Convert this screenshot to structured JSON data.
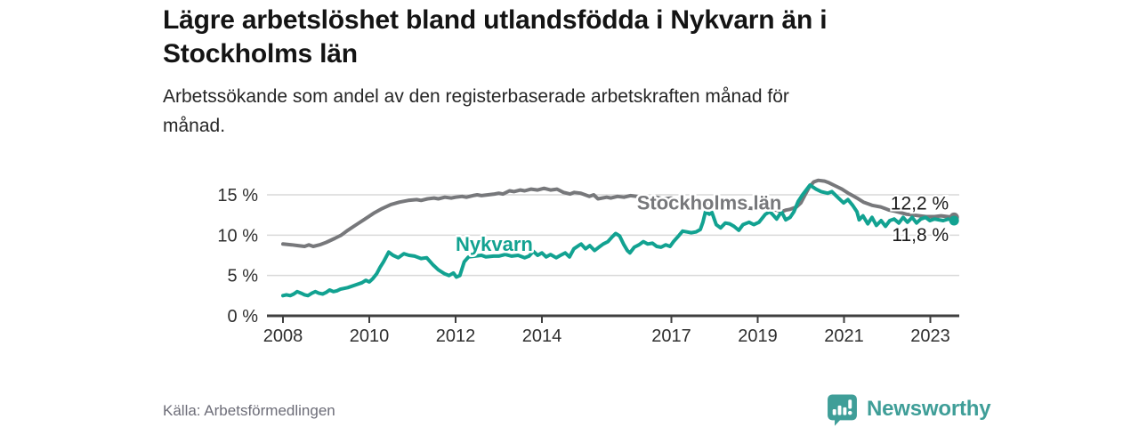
{
  "header": {
    "title": "Lägre arbetslöshet bland utlandsfödda i Nykvarn än i Stockholms län",
    "title_lines": [
      "Lägre arbetslöshet bland utlandsfödda i Nykvarn än i",
      "Stockholms län"
    ],
    "subtitle": "Arbetssökande som andel av den registerbaserade arbetskraften månad för månad.",
    "subtitle_lines": [
      "Arbetssökande som andel av den registerbaserade arbetskraften månad för",
      "månad."
    ]
  },
  "footer": {
    "source": "Källa: Arbetsförmedlingen",
    "brand": "Newsworthy"
  },
  "colors": {
    "stockholm_line": "#77787b",
    "nykvarn_line": "#12a291",
    "axis": "#3f3f3f",
    "grid": "#d9d9d9",
    "tick_text": "#2f2f2f",
    "end_label_text": "#1a1a1a",
    "logo_teal": "#3f9e98",
    "source_text": "#6d6d78"
  },
  "chart_data": {
    "type": "line",
    "title": "Lägre arbetslöshet bland utlandsfödda i Nykvarn än i Stockholms län",
    "subtitle": "Arbetssökande som andel av den registerbaserade arbetskraften månad för månad.",
    "xlabel": "",
    "ylabel": "",
    "xlim": [
      2008,
      2023.8
    ],
    "ylim": [
      0,
      17.5
    ],
    "grid": true,
    "x_ticks": [
      {
        "value": 2008,
        "label": "2008"
      },
      {
        "value": 2010,
        "label": "2010"
      },
      {
        "value": 2012,
        "label": "2012"
      },
      {
        "value": 2014,
        "label": "2014"
      },
      {
        "value": 2017,
        "label": "2017"
      },
      {
        "value": 2019,
        "label": "2019"
      },
      {
        "value": 2021,
        "label": "2021"
      },
      {
        "value": 2023,
        "label": "2023"
      }
    ],
    "y_ticks": [
      {
        "value": 0,
        "label": "0 %"
      },
      {
        "value": 5,
        "label": "5 %"
      },
      {
        "value": 10,
        "label": "10 %"
      },
      {
        "value": 15,
        "label": "15 %"
      }
    ],
    "series": [
      {
        "id": "stockholm",
        "name": "Stockholms län",
        "color": "#77787b",
        "end_label": "12,2 %",
        "end_label_side": "above",
        "label_pos": {
          "x": 2016.2,
          "y": 13.2
        },
        "points": [
          [
            2008.0,
            8.9
          ],
          [
            2008.2,
            8.8
          ],
          [
            2008.35,
            8.7
          ],
          [
            2008.5,
            8.6
          ],
          [
            2008.6,
            8.8
          ],
          [
            2008.7,
            8.6
          ],
          [
            2008.85,
            8.8
          ],
          [
            2009.0,
            9.1
          ],
          [
            2009.2,
            9.6
          ],
          [
            2009.35,
            10.0
          ],
          [
            2009.5,
            10.6
          ],
          [
            2009.7,
            11.3
          ],
          [
            2009.9,
            12.0
          ],
          [
            2010.1,
            12.7
          ],
          [
            2010.3,
            13.3
          ],
          [
            2010.5,
            13.8
          ],
          [
            2010.7,
            14.1
          ],
          [
            2010.9,
            14.3
          ],
          [
            2011.1,
            14.4
          ],
          [
            2011.2,
            14.3
          ],
          [
            2011.35,
            14.5
          ],
          [
            2011.5,
            14.6
          ],
          [
            2011.6,
            14.5
          ],
          [
            2011.75,
            14.7
          ],
          [
            2011.9,
            14.6
          ],
          [
            2012.0,
            14.7
          ],
          [
            2012.15,
            14.8
          ],
          [
            2012.25,
            14.7
          ],
          [
            2012.4,
            14.9
          ],
          [
            2012.5,
            15.0
          ],
          [
            2012.6,
            14.9
          ],
          [
            2012.75,
            15.0
          ],
          [
            2012.9,
            15.1
          ],
          [
            2013.0,
            15.2
          ],
          [
            2013.1,
            15.1
          ],
          [
            2013.25,
            15.5
          ],
          [
            2013.35,
            15.4
          ],
          [
            2013.5,
            15.6
          ],
          [
            2013.6,
            15.5
          ],
          [
            2013.75,
            15.7
          ],
          [
            2013.9,
            15.6
          ],
          [
            2014.05,
            15.8
          ],
          [
            2014.2,
            15.6
          ],
          [
            2014.35,
            15.7
          ],
          [
            2014.5,
            15.3
          ],
          [
            2014.65,
            15.1
          ],
          [
            2014.75,
            15.3
          ],
          [
            2014.9,
            15.2
          ],
          [
            2015.0,
            15.0
          ],
          [
            2015.1,
            14.8
          ],
          [
            2015.2,
            15.0
          ],
          [
            2015.3,
            14.5
          ],
          [
            2015.5,
            14.7
          ],
          [
            2015.6,
            14.6
          ],
          [
            2015.75,
            14.8
          ],
          [
            2015.9,
            14.7
          ],
          [
            2016.05,
            14.9
          ],
          [
            2016.2,
            14.8
          ],
          [
            2016.35,
            14.7
          ],
          [
            2016.5,
            14.6
          ],
          [
            2016.65,
            14.7
          ],
          [
            2016.8,
            14.5
          ],
          [
            2017.0,
            14.6
          ],
          [
            2017.15,
            14.4
          ],
          [
            2017.3,
            14.5
          ],
          [
            2017.5,
            14.3
          ],
          [
            2017.7,
            14.2
          ],
          [
            2017.9,
            14.0
          ],
          [
            2018.1,
            13.8
          ],
          [
            2018.3,
            13.6
          ],
          [
            2018.5,
            13.5
          ],
          [
            2018.7,
            13.4
          ],
          [
            2018.9,
            13.3
          ],
          [
            2019.1,
            13.3
          ],
          [
            2019.25,
            13.2
          ],
          [
            2019.45,
            13.1
          ],
          [
            2019.55,
            12.9
          ],
          [
            2019.65,
            13.1
          ],
          [
            2019.75,
            13.2
          ],
          [
            2019.9,
            13.5
          ],
          [
            2020.0,
            14.0
          ],
          [
            2020.1,
            15.0
          ],
          [
            2020.2,
            16.0
          ],
          [
            2020.3,
            16.6
          ],
          [
            2020.4,
            16.8
          ],
          [
            2020.55,
            16.7
          ],
          [
            2020.65,
            16.5
          ],
          [
            2020.8,
            16.1
          ],
          [
            2020.95,
            15.7
          ],
          [
            2021.1,
            15.2
          ],
          [
            2021.2,
            14.9
          ],
          [
            2021.3,
            14.6
          ],
          [
            2021.45,
            14.1
          ],
          [
            2021.55,
            13.9
          ],
          [
            2021.65,
            13.7
          ],
          [
            2021.85,
            13.5
          ],
          [
            2021.95,
            13.3
          ],
          [
            2022.05,
            13.1
          ],
          [
            2022.15,
            13.0
          ],
          [
            2022.3,
            12.8
          ],
          [
            2022.45,
            12.6
          ],
          [
            2022.6,
            12.5
          ],
          [
            2022.75,
            12.4
          ],
          [
            2022.9,
            12.3
          ],
          [
            2023.1,
            12.3
          ],
          [
            2023.25,
            12.4
          ],
          [
            2023.4,
            12.3
          ],
          [
            2023.55,
            12.2
          ]
        ]
      },
      {
        "id": "nykvarn",
        "name": "Nykvarn",
        "color": "#12a291",
        "end_label": "11,8 %",
        "end_label_side": "below",
        "label_pos": {
          "x": 2012.0,
          "y": 8.05
        },
        "points": [
          [
            2008.0,
            2.5
          ],
          [
            2008.08,
            2.6
          ],
          [
            2008.17,
            2.5
          ],
          [
            2008.25,
            2.7
          ],
          [
            2008.33,
            3.0
          ],
          [
            2008.42,
            2.8
          ],
          [
            2008.5,
            2.6
          ],
          [
            2008.58,
            2.5
          ],
          [
            2008.67,
            2.8
          ],
          [
            2008.75,
            3.0
          ],
          [
            2008.83,
            2.8
          ],
          [
            2008.92,
            2.7
          ],
          [
            2009.0,
            2.9
          ],
          [
            2009.08,
            3.2
          ],
          [
            2009.17,
            3.0
          ],
          [
            2009.25,
            3.1
          ],
          [
            2009.33,
            3.3
          ],
          [
            2009.5,
            3.5
          ],
          [
            2009.67,
            3.8
          ],
          [
            2009.83,
            4.1
          ],
          [
            2009.92,
            4.4
          ],
          [
            2010.0,
            4.2
          ],
          [
            2010.08,
            4.6
          ],
          [
            2010.17,
            5.2
          ],
          [
            2010.25,
            6.0
          ],
          [
            2010.33,
            6.7
          ],
          [
            2010.45,
            7.9
          ],
          [
            2010.55,
            7.5
          ],
          [
            2010.67,
            7.2
          ],
          [
            2010.8,
            7.7
          ],
          [
            2010.92,
            7.5
          ],
          [
            2011.05,
            7.4
          ],
          [
            2011.2,
            7.1
          ],
          [
            2011.33,
            7.2
          ],
          [
            2011.48,
            6.3
          ],
          [
            2011.6,
            5.7
          ],
          [
            2011.75,
            5.2
          ],
          [
            2011.85,
            5.0
          ],
          [
            2011.95,
            5.3
          ],
          [
            2012.02,
            4.8
          ],
          [
            2012.1,
            5.0
          ],
          [
            2012.2,
            6.7
          ],
          [
            2012.3,
            7.3
          ],
          [
            2012.45,
            7.4
          ],
          [
            2012.6,
            7.5
          ],
          [
            2012.7,
            7.3
          ],
          [
            2012.88,
            7.4
          ],
          [
            2013.0,
            7.4
          ],
          [
            2013.15,
            7.6
          ],
          [
            2013.3,
            7.4
          ],
          [
            2013.45,
            7.5
          ],
          [
            2013.6,
            7.2
          ],
          [
            2013.7,
            7.4
          ],
          [
            2013.8,
            8.0
          ],
          [
            2013.9,
            7.5
          ],
          [
            2014.0,
            7.8
          ],
          [
            2014.1,
            7.3
          ],
          [
            2014.2,
            7.6
          ],
          [
            2014.33,
            7.2
          ],
          [
            2014.43,
            7.5
          ],
          [
            2014.54,
            7.8
          ],
          [
            2014.64,
            7.3
          ],
          [
            2014.74,
            8.3
          ],
          [
            2014.85,
            8.7
          ],
          [
            2014.91,
            8.9
          ],
          [
            2015.01,
            8.3
          ],
          [
            2015.11,
            8.7
          ],
          [
            2015.22,
            8.1
          ],
          [
            2015.32,
            8.5
          ],
          [
            2015.42,
            8.9
          ],
          [
            2015.53,
            9.2
          ],
          [
            2015.63,
            9.8
          ],
          [
            2015.71,
            10.2
          ],
          [
            2015.8,
            9.9
          ],
          [
            2015.9,
            8.8
          ],
          [
            2015.98,
            8.1
          ],
          [
            2016.04,
            7.8
          ],
          [
            2016.14,
            8.5
          ],
          [
            2016.25,
            8.8
          ],
          [
            2016.35,
            9.2
          ],
          [
            2016.45,
            8.9
          ],
          [
            2016.56,
            9.0
          ],
          [
            2016.66,
            8.6
          ],
          [
            2016.76,
            8.5
          ],
          [
            2016.87,
            8.8
          ],
          [
            2016.97,
            8.6
          ],
          [
            2017.05,
            9.2
          ],
          [
            2017.15,
            9.8
          ],
          [
            2017.26,
            10.5
          ],
          [
            2017.36,
            10.4
          ],
          [
            2017.46,
            10.3
          ],
          [
            2017.57,
            10.4
          ],
          [
            2017.67,
            10.7
          ],
          [
            2017.73,
            11.6
          ],
          [
            2017.79,
            12.9
          ],
          [
            2017.88,
            12.6
          ],
          [
            2017.94,
            12.8
          ],
          [
            2018.04,
            11.3
          ],
          [
            2018.14,
            10.9
          ],
          [
            2018.25,
            11.5
          ],
          [
            2018.35,
            11.4
          ],
          [
            2018.45,
            11.1
          ],
          [
            2018.56,
            10.6
          ],
          [
            2018.66,
            11.3
          ],
          [
            2018.8,
            11.6
          ],
          [
            2018.91,
            11.3
          ],
          [
            2019.03,
            11.6
          ],
          [
            2019.18,
            12.6
          ],
          [
            2019.28,
            12.9
          ],
          [
            2019.34,
            12.6
          ],
          [
            2019.44,
            12.0
          ],
          [
            2019.55,
            12.9
          ],
          [
            2019.65,
            11.9
          ],
          [
            2019.75,
            12.2
          ],
          [
            2019.84,
            12.9
          ],
          [
            2019.94,
            14.2
          ],
          [
            2020.04,
            15.0
          ],
          [
            2020.21,
            16.2
          ],
          [
            2020.35,
            15.7
          ],
          [
            2020.47,
            15.4
          ],
          [
            2020.62,
            15.2
          ],
          [
            2020.72,
            15.4
          ],
          [
            2020.87,
            14.6
          ],
          [
            2020.99,
            14.0
          ],
          [
            2021.09,
            14.4
          ],
          [
            2021.2,
            13.7
          ],
          [
            2021.3,
            12.9
          ],
          [
            2021.35,
            11.9
          ],
          [
            2021.44,
            12.4
          ],
          [
            2021.55,
            11.4
          ],
          [
            2021.65,
            12.2
          ],
          [
            2021.75,
            11.2
          ],
          [
            2021.86,
            11.8
          ],
          [
            2021.96,
            11.1
          ],
          [
            2022.06,
            11.8
          ],
          [
            2022.16,
            12.0
          ],
          [
            2022.27,
            11.5
          ],
          [
            2022.37,
            12.2
          ],
          [
            2022.47,
            11.6
          ],
          [
            2022.58,
            12.2
          ],
          [
            2022.68,
            11.5
          ],
          [
            2022.78,
            12.0
          ],
          [
            2022.89,
            12.2
          ],
          [
            2022.99,
            11.8
          ],
          [
            2023.09,
            12.0
          ],
          [
            2023.2,
            11.9
          ],
          [
            2023.3,
            11.8
          ],
          [
            2023.42,
            12.0
          ],
          [
            2023.55,
            11.8
          ]
        ]
      }
    ],
    "legend_position": "inline-labels"
  }
}
